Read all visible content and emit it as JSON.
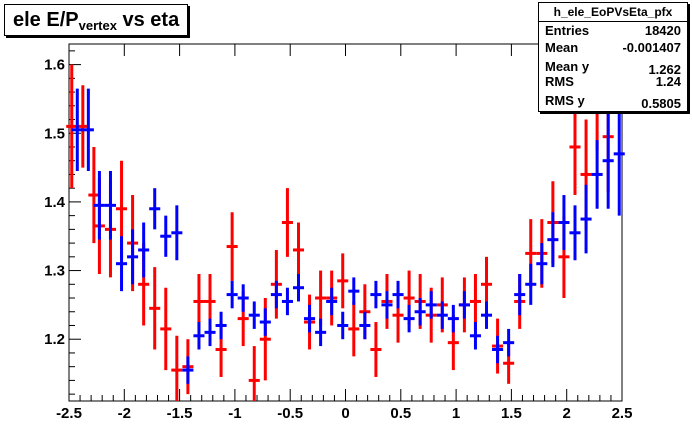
{
  "title": {
    "main": "ele E/P",
    "sub": "vertex",
    "rest": " vs eta"
  },
  "stats": {
    "name": "h_ele_EoPVsEta_pfx",
    "rows": [
      {
        "key": "Entries",
        "value": "18420"
      },
      {
        "key": "Mean",
        "value": "-0.001407"
      },
      {
        "key": "Mean y",
        "value": "1.262"
      },
      {
        "key": "RMS",
        "value": "1.24"
      },
      {
        "key": "RMS y",
        "value": "0.5805"
      }
    ]
  },
  "colors": {
    "red": "#ff0000",
    "blue": "#0000ff",
    "axis": "#000000"
  },
  "chart_data": {
    "type": "scatter",
    "title": "ele E/P vertex vs eta",
    "xlim": [
      -2.5,
      2.5
    ],
    "ylim": [
      1.11,
      1.63
    ],
    "xticks": [
      "-2.5",
      "-2",
      "-1.5",
      "-1",
      "-0.5",
      "0",
      "0.5",
      "1",
      "1.5",
      "2",
      "2.5"
    ],
    "yticks": [
      "1.2",
      "1.3",
      "1.4",
      "1.5",
      "1.6"
    ],
    "bin_width": 0.1,
    "series": [
      {
        "color": "red",
        "x": [
          -2.475,
          -2.375,
          -2.275,
          -2.225,
          -2.125,
          -2.025,
          -1.925,
          -1.825,
          -1.725,
          -1.625,
          -1.525,
          -1.425,
          -1.325,
          -1.225,
          -1.125,
          -1.025,
          -0.925,
          -0.825,
          -0.725,
          -0.625,
          -0.525,
          -0.425,
          -0.325,
          -0.225,
          -0.125,
          -0.025,
          0.075,
          0.175,
          0.275,
          0.375,
          0.475,
          0.575,
          0.675,
          0.775,
          0.875,
          0.975,
          1.075,
          1.175,
          1.275,
          1.375,
          1.475,
          1.575,
          1.675,
          1.775,
          1.875,
          1.975,
          2.075,
          2.175,
          2.275,
          2.375
        ],
        "y": [
          1.51,
          1.51,
          1.41,
          1.365,
          1.36,
          1.39,
          1.34,
          1.28,
          1.245,
          1.215,
          1.155,
          1.16,
          1.255,
          1.255,
          1.185,
          1.335,
          1.23,
          1.14,
          1.2,
          1.28,
          1.37,
          1.33,
          1.225,
          1.26,
          1.26,
          1.285,
          1.215,
          1.24,
          1.185,
          1.255,
          1.235,
          1.26,
          1.255,
          1.235,
          1.25,
          1.195,
          1.25,
          1.255,
          1.28,
          1.19,
          1.165,
          1.255,
          1.325,
          1.325,
          1.37,
          1.32,
          1.48,
          1.44,
          1.555,
          1.495
        ],
        "err": [
          0.09,
          0.06,
          0.07,
          0.07,
          0.07,
          0.07,
          0.07,
          0.06,
          0.06,
          0.06,
          0.05,
          0.04,
          0.04,
          0.04,
          0.04,
          0.05,
          0.04,
          0.05,
          0.06,
          0.05,
          0.05,
          0.04,
          0.04,
          0.04,
          0.04,
          0.04,
          0.04,
          0.04,
          0.04,
          0.04,
          0.04,
          0.04,
          0.04,
          0.04,
          0.04,
          0.04,
          0.04,
          0.04,
          0.04,
          0.04,
          0.03,
          0.04,
          0.05,
          0.05,
          0.06,
          0.06,
          0.07,
          0.08,
          0.08,
          0.08
        ]
      },
      {
        "color": "blue",
        "x": [
          -2.425,
          -2.325,
          -2.225,
          -2.125,
          -2.025,
          -1.925,
          -1.825,
          -1.725,
          -1.625,
          -1.525,
          -1.425,
          -1.325,
          -1.225,
          -1.125,
          -1.025,
          -0.925,
          -0.825,
          -0.725,
          -0.625,
          -0.525,
          -0.425,
          -0.325,
          -0.225,
          -0.125,
          -0.025,
          0.075,
          0.175,
          0.275,
          0.375,
          0.475,
          0.575,
          0.675,
          0.775,
          0.875,
          0.975,
          1.075,
          1.175,
          1.275,
          1.375,
          1.475,
          1.575,
          1.675,
          1.775,
          1.875,
          1.975,
          2.075,
          2.175,
          2.275,
          2.375,
          2.475
        ],
        "y": [
          1.505,
          1.505,
          1.395,
          1.395,
          1.31,
          1.32,
          1.33,
          1.39,
          1.35,
          1.355,
          1.155,
          1.205,
          1.21,
          1.22,
          1.265,
          1.26,
          1.235,
          1.225,
          1.265,
          1.255,
          1.275,
          1.23,
          1.21,
          1.255,
          1.22,
          1.27,
          1.22,
          1.265,
          1.25,
          1.265,
          1.23,
          1.24,
          1.25,
          1.235,
          1.23,
          1.25,
          1.205,
          1.235,
          1.185,
          1.195,
          1.265,
          1.28,
          1.31,
          1.345,
          1.37,
          1.355,
          1.375,
          1.44,
          1.46,
          1.47
        ],
        "err": [
          0.06,
          0.06,
          0.05,
          0.05,
          0.04,
          0.04,
          0.04,
          0.03,
          0.03,
          0.04,
          0.02,
          0.02,
          0.02,
          0.02,
          0.02,
          0.02,
          0.02,
          0.02,
          0.02,
          0.02,
          0.02,
          0.02,
          0.02,
          0.02,
          0.02,
          0.02,
          0.02,
          0.02,
          0.02,
          0.02,
          0.02,
          0.02,
          0.02,
          0.02,
          0.02,
          0.02,
          0.02,
          0.02,
          0.02,
          0.02,
          0.03,
          0.03,
          0.03,
          0.04,
          0.04,
          0.04,
          0.05,
          0.05,
          0.07,
          0.09
        ]
      }
    ]
  }
}
